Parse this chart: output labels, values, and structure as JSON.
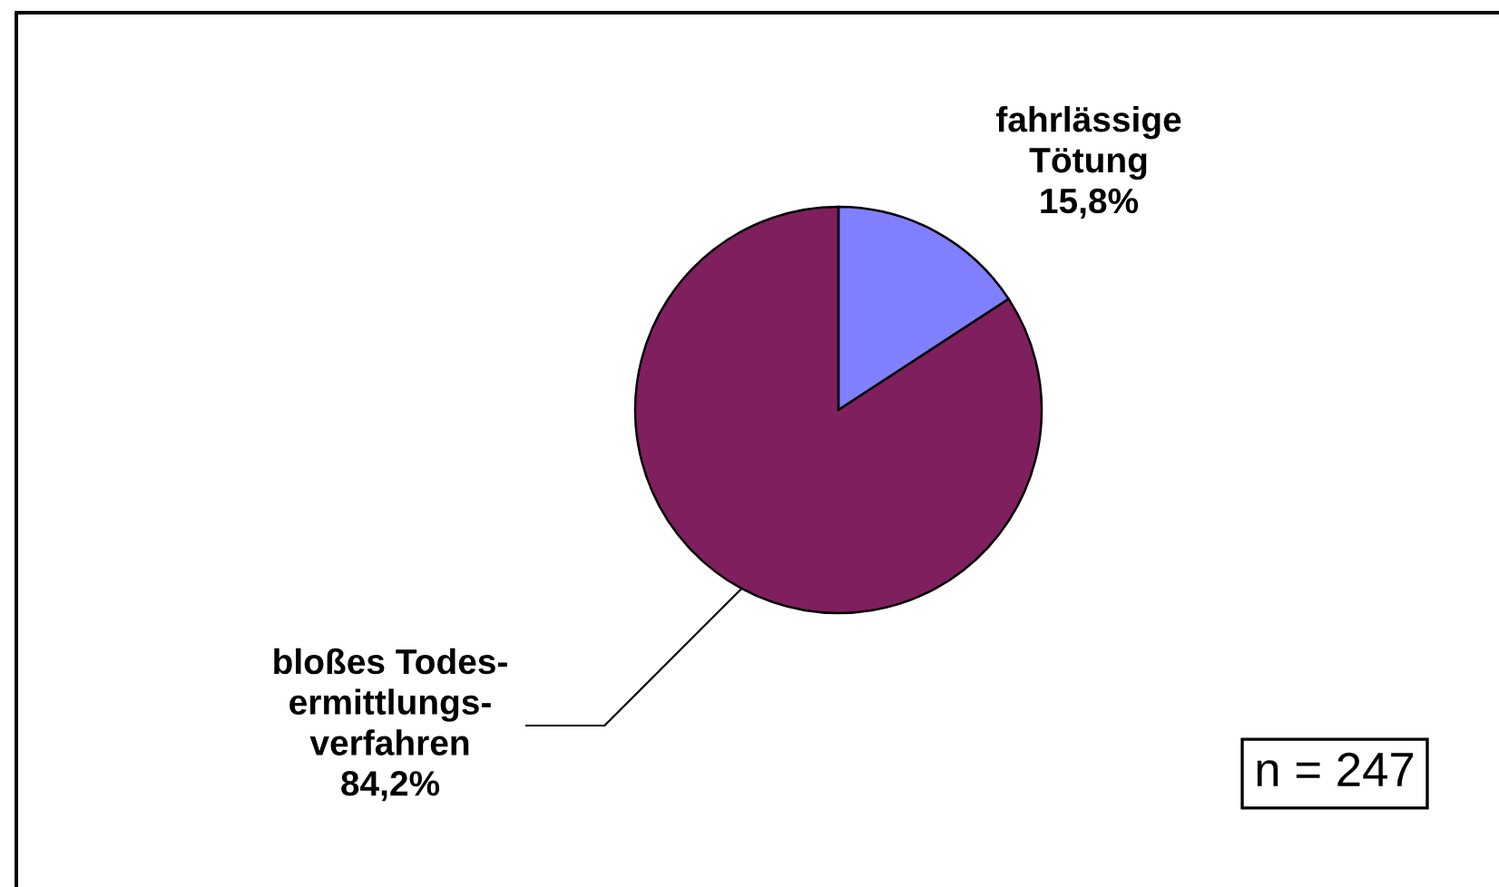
{
  "chart_data": {
    "type": "pie",
    "categories": [
      "fahrlässige\nTötung",
      "bloßes Todes-\nermittlungs-\nverfahren"
    ],
    "values": [
      15.8,
      84.2
    ],
    "colors": [
      "#8080ff",
      "#801f5e"
    ],
    "value_labels": [
      "15,8%",
      "84,2%"
    ],
    "annotations": [
      "n = 247"
    ]
  }
}
